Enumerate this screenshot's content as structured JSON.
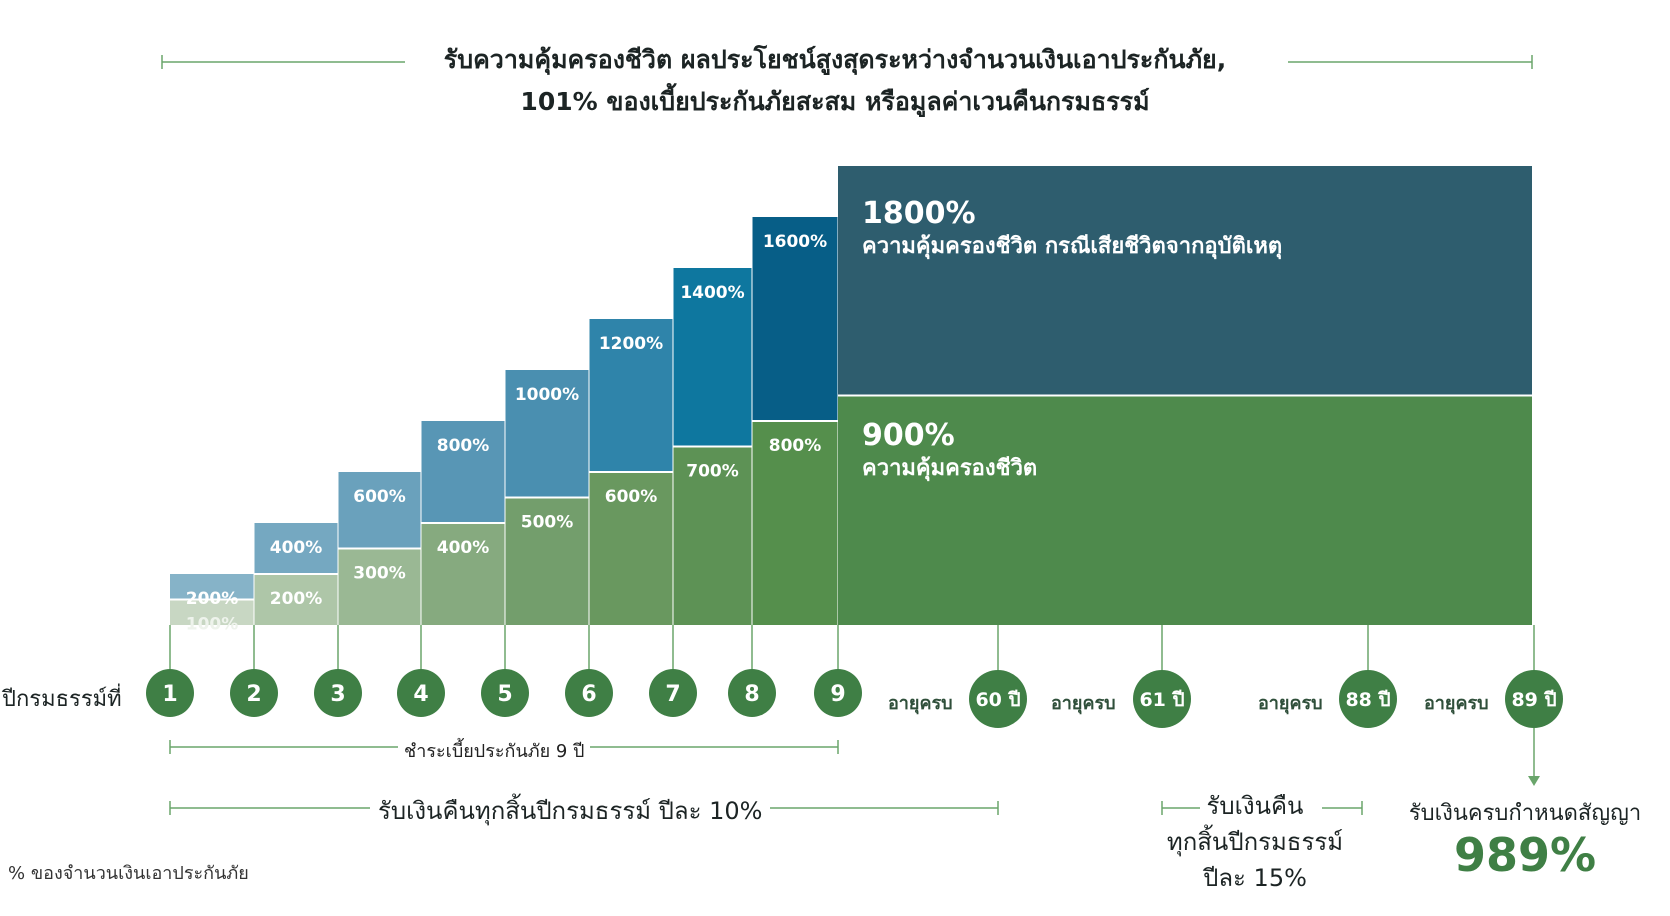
{
  "title": {
    "line1": "รับความคุ้มครองชีวิต ผลประโยชน์สูงสุดระหว่างจำนวนเงินเอาประกันภัย,",
    "line2": "101% ของเบี้ยประกันภัยสะสม หรือมูลค่าเวนคืนกรมธรรม์"
  },
  "chart_data": {
    "type": "bar",
    "categories": [
      "1",
      "2",
      "3",
      "4",
      "5",
      "6",
      "7",
      "8"
    ],
    "series": [
      {
        "values": [
          100,
          200,
          300,
          400,
          500,
          600,
          700,
          800
        ],
        "labels": [
          "100%",
          "200%",
          "300%",
          "400%",
          "500%",
          "600%",
          "700%",
          "800%"
        ]
      },
      {
        "values": [
          200,
          400,
          600,
          800,
          1000,
          1200,
          1400,
          1600
        ],
        "labels": [
          "200%",
          "400%",
          "600%",
          "800%",
          "1000%",
          "1200%",
          "1400%",
          "1600%"
        ]
      }
    ],
    "final_block": {
      "life_pct": "900%",
      "life_desc": "ความคุ้มครองชีวิต",
      "accident_pct": "1800%",
      "accident_desc": "ความคุ้มครองชีวิต กรณีเสียชีวิตจากอุบัติเหตุ"
    },
    "colors": {
      "green": [
        "#c8d7c3",
        "#aec6a8",
        "#9ab894",
        "#86aa7f",
        "#739e6c",
        "#69985f",
        "#5d9255",
        "#558f4c"
      ],
      "blue": [
        "#86b3c8",
        "#75a8c1",
        "#6aa1bc",
        "#5896b5",
        "#4a8fb0",
        "#2f84aa",
        "#0e779f",
        "#075e87"
      ],
      "final_green": "#4e8a4c",
      "final_blue": "#2e5d6e"
    }
  },
  "axis": {
    "label": "ปีกรมธรรม์ที่",
    "years": [
      "1",
      "2",
      "3",
      "4",
      "5",
      "6",
      "7",
      "8",
      "9"
    ],
    "age_prefix": "อายุครบ",
    "ages": [
      "60 ปี",
      "61 ปี",
      "88 ปี",
      "89 ปี"
    ],
    "circle_color": "#3f7f45"
  },
  "brackets": {
    "premium": "ชำระเบี้ยประกันภัย 9 ปี",
    "refund10": "รับเงินคืนทุกสิ้นปีกรมธรรม์ ปีละ 10%",
    "refund15_line1": "รับเงินคืน",
    "refund15_line2": "ทุกสิ้นปีกรมธรรม์",
    "refund15_line3": "ปีละ 15%",
    "maturity_caption": "รับเงินครบกำหนดสัญญา",
    "maturity_pct": "989%"
  },
  "footnote": "% ของจำนวนเงินเอาประกันภัย"
}
